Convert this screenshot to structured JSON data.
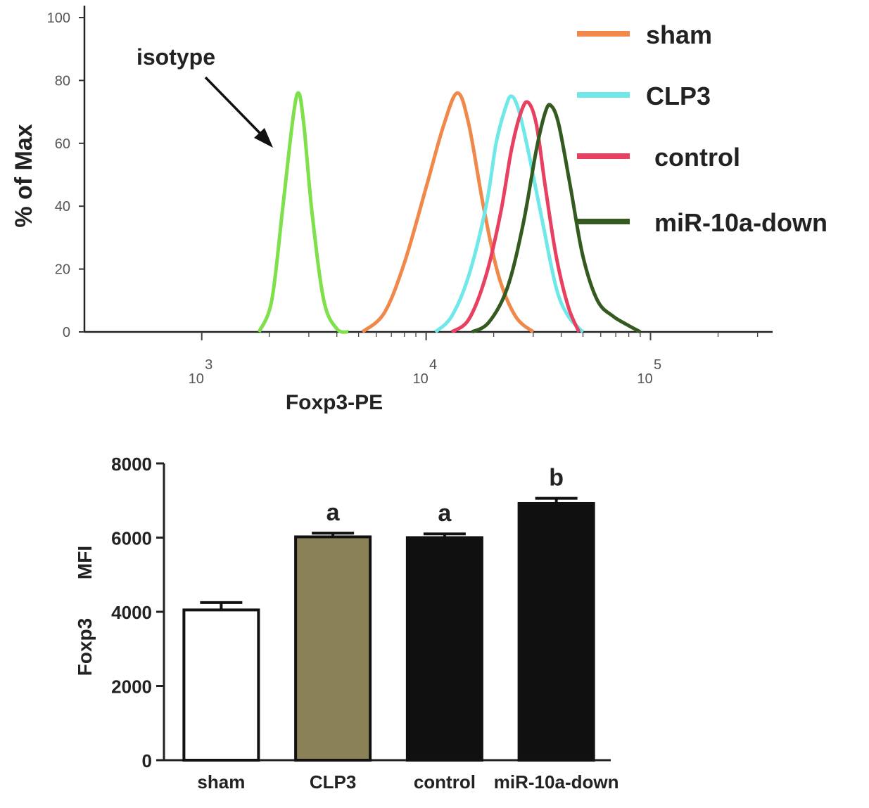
{
  "chart_data": [
    {
      "type": "line",
      "xlabel": "Foxp3-PE",
      "ylabel": "% of Max",
      "xscale": "log",
      "xlim": [
        300,
        350000
      ],
      "ylim": [
        0,
        100
      ],
      "yticks": [
        0,
        20,
        40,
        60,
        80,
        100
      ],
      "xticks": [
        {
          "value": 1000,
          "base": "10",
          "exp": "3"
        },
        {
          "value": 10000,
          "base": "10",
          "exp": "4"
        },
        {
          "value": 100000,
          "base": "10",
          "exp": "5"
        }
      ],
      "annotation": {
        "text": "isotype",
        "points_to": "isotype"
      },
      "legend": {
        "placement": "top-right"
      },
      "series": [
        {
          "name": "isotype",
          "color": "#7ee04a",
          "in_legend": false,
          "points": [
            [
              1800,
              0
            ],
            [
              2050,
              10
            ],
            [
              2300,
              40
            ],
            [
              2550,
              68
            ],
            [
              2700,
              76
            ],
            [
              2850,
              66
            ],
            [
              3100,
              38
            ],
            [
              3500,
              10
            ],
            [
              4000,
              1
            ],
            [
              4500,
              0
            ]
          ]
        },
        {
          "name": "sham",
          "color": "#f0884a",
          "in_legend": true,
          "points": [
            [
              5200,
              0
            ],
            [
              6500,
              6
            ],
            [
              8000,
              22
            ],
            [
              10000,
              46
            ],
            [
              12000,
              66
            ],
            [
              13800,
              76
            ],
            [
              15500,
              66
            ],
            [
              18000,
              40
            ],
            [
              21000,
              18
            ],
            [
              25000,
              5
            ],
            [
              30000,
              0
            ]
          ]
        },
        {
          "name": "CLP3",
          "color": "#6ee8e8",
          "in_legend": true,
          "points": [
            [
              11000,
              0
            ],
            [
              13000,
              5
            ],
            [
              15500,
              18
            ],
            [
              18500,
              40
            ],
            [
              20500,
              60
            ],
            [
              22500,
              71
            ],
            [
              24000,
              75
            ],
            [
              26000,
              70
            ],
            [
              29000,
              55
            ],
            [
              33000,
              35
            ],
            [
              38000,
              14
            ],
            [
              43000,
              5
            ],
            [
              50000,
              0
            ]
          ]
        },
        {
          "name": "control",
          "color": "#e84060",
          "in_legend": true,
          "points": [
            [
              13000,
              0
            ],
            [
              15500,
              4
            ],
            [
              18500,
              18
            ],
            [
              21500,
              38
            ],
            [
              24000,
              58
            ],
            [
              26500,
              70
            ],
            [
              28500,
              73
            ],
            [
              31000,
              66
            ],
            [
              34000,
              46
            ],
            [
              38000,
              24
            ],
            [
              43000,
              8
            ],
            [
              48000,
              0
            ]
          ]
        },
        {
          "name": "miR-10a-down",
          "color": "#355a20",
          "in_legend": true,
          "points": [
            [
              16000,
              0
            ],
            [
              19000,
              3
            ],
            [
              23000,
              14
            ],
            [
              27000,
              34
            ],
            [
              31000,
              58
            ],
            [
              34000,
              70
            ],
            [
              36000,
              72
            ],
            [
              39000,
              66
            ],
            [
              44000,
              46
            ],
            [
              50000,
              24
            ],
            [
              58000,
              10
            ],
            [
              68000,
              5
            ],
            [
              80000,
              2
            ],
            [
              90000,
              0
            ]
          ]
        }
      ]
    },
    {
      "type": "bar",
      "categories": [
        "sham",
        "CLP3",
        "control",
        "miR-10a-down"
      ],
      "series": [
        {
          "values": [
            4050,
            6020,
            6000,
            6920
          ],
          "errors": [
            200,
            100,
            100,
            140
          ]
        }
      ],
      "ylabel_words": [
        "Foxp3",
        "MFI"
      ],
      "ylim": [
        0,
        8000
      ],
      "yticks": [
        0,
        2000,
        4000,
        6000,
        8000
      ],
      "bar_colors": [
        "#ffffff",
        "#8a8256",
        "#101010",
        "#101010"
      ],
      "significance_labels": [
        "",
        "a",
        "a",
        "b"
      ],
      "grid": false
    }
  ]
}
